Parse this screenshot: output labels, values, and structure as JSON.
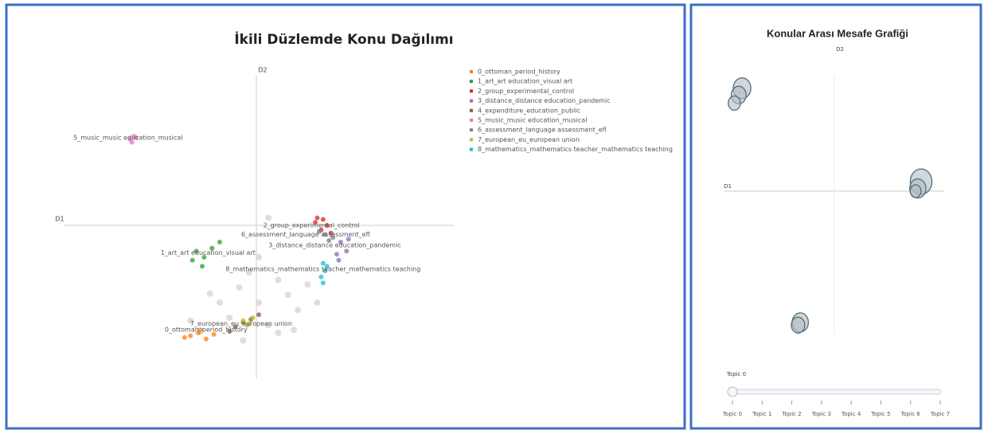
{
  "chart_data": [
    {
      "type": "scatter",
      "title": "İkili Düzlemde Konu Dağılımı",
      "xlabel": "D1",
      "ylabel": "D2",
      "xlim": [
        -10,
        10
      ],
      "ylim": [
        -10,
        10
      ],
      "legend": "top-right",
      "series": [
        {
          "color": "#d3d3d3",
          "x": [
            -1,
            0,
            1,
            2,
            -2,
            0.5,
            1.5,
            -0.5,
            2.5,
            0,
            1,
            -1.5,
            0.5,
            3,
            -0.8,
            1.8,
            -3.5,
            -2.5
          ],
          "y": [
            -4,
            -5,
            -3.5,
            -5.5,
            -5,
            -6.5,
            -4.5,
            -3,
            -3.8,
            -2,
            -7,
            -6,
            0.6,
            -5,
            -7.5,
            -6.8,
            -6.2,
            -4.4
          ]
        },
        {
          "name": "0_ottoman_period_history",
          "color": "#ff7f0e",
          "x": [
            -3.5,
            -3.1,
            -2.7,
            -3.8,
            -2.3,
            -3.0
          ],
          "y": [
            -7.2,
            -7.0,
            -7.4,
            -7.3,
            -7.1,
            -6.8
          ]
        },
        {
          "name": "1_art_art education_visual art",
          "color": "#2ca02c",
          "x": [
            -3.2,
            -2.8,
            -2.4,
            -2.9,
            -2.0,
            -3.4
          ],
          "y": [
            -1.6,
            -2.0,
            -1.4,
            -2.6,
            -1.0,
            -2.2
          ]
        },
        {
          "name": "2_group_experimental_control",
          "color": "#d62728",
          "x": [
            2.9,
            3.2,
            3.5,
            3.0,
            3.7,
            3.3
          ],
          "y": [
            0.3,
            -0.2,
            0.1,
            0.6,
            -0.4,
            0.5
          ]
        },
        {
          "name": "3_distance_distance education_pandemic",
          "color": "#9467bd",
          "x": [
            4.2,
            4.5,
            4.0,
            4.6,
            4.1
          ],
          "y": [
            -1.0,
            -1.6,
            -1.8,
            -0.8,
            -2.2
          ]
        },
        {
          "name": "4_expenditure_education_public",
          "color": "#8c564b",
          "x": [
            -1.2,
            -0.8,
            -0.4,
            -1.5,
            0.0
          ],
          "y": [
            -6.6,
            -6.3,
            -6.1,
            -6.9,
            -5.8
          ]
        },
        {
          "name": "5_music_music education_musical",
          "color": "#e377c2",
          "x": [
            -6.6,
            -6.4,
            -6.5,
            -6.3
          ],
          "y": [
            5.8,
            6.0,
            5.6,
            5.9
          ]
        },
        {
          "name": "6_assessment_language assessment_efl",
          "color": "#7f7f7f",
          "x": [
            3.4,
            3.8,
            3.1,
            3.6
          ],
          "y": [
            -0.5,
            -0.7,
            -0.3,
            -0.9
          ]
        },
        {
          "name": "7_european_eu_european union",
          "color": "#bcbd22",
          "x": [
            -0.8,
            -0.5,
            -0.3,
            -0.6
          ],
          "y": [
            -6.2,
            -6.4,
            -6.0,
            -6.5
          ]
        },
        {
          "name": "8_mathematics_mathematics teacher_mathematics teaching",
          "color": "#17becf",
          "x": [
            3.3,
            3.4,
            3.2,
            3.5,
            3.3
          ],
          "y": [
            -2.4,
            -2.9,
            -3.3,
            -2.6,
            -3.7
          ]
        }
      ],
      "annotations": [
        {
          "text": "5_music_music education_musical",
          "x": -6.7,
          "y": 5.9
        },
        {
          "text": "2_group_experimental_control",
          "x": 2.7,
          "y": 0.1
        },
        {
          "text": "6_assessment_language assessment_efl",
          "x": 2.4,
          "y": -0.5
        },
        {
          "text": "3_distance_distance education_pandemic",
          "x": 3.9,
          "y": -1.2
        },
        {
          "text": "1_art_art education_visual art",
          "x": -2.6,
          "y": -1.7
        },
        {
          "text": "8_mathematics_mathematics teacher_mathematics teaching",
          "x": 3.3,
          "y": -2.8
        },
        {
          "text": "7_european_eu_european union",
          "x": -0.9,
          "y": -6.4
        },
        {
          "text": "0_ottoman_period_history",
          "x": -2.7,
          "y": -6.8
        }
      ]
    },
    {
      "type": "bubble",
      "title": "Konular Arası Mesafe Grafiği",
      "xlabel": "D1",
      "ylabel": "D2",
      "xlim": [
        -10,
        10
      ],
      "ylim": [
        -10,
        10
      ],
      "color": "#b0bec5",
      "x": [
        -8.4,
        -8.7,
        -9.1,
        7.9,
        7.6,
        7.4,
        -3.1,
        -3.3
      ],
      "y": [
        7.6,
        7.1,
        6.5,
        0.7,
        0.2,
        0,
        -9.7,
        -9.9
      ],
      "size": [
        13,
        11,
        9,
        16,
        12,
        8,
        12,
        10
      ],
      "slider": {
        "label": "Topic 0",
        "active": 0,
        "steps": [
          "Topic 0",
          "Topic 1",
          "Topic 2",
          "Topic 3",
          "Topic 4",
          "Topic 5",
          "Topic 6",
          "Topic 7"
        ]
      }
    }
  ]
}
